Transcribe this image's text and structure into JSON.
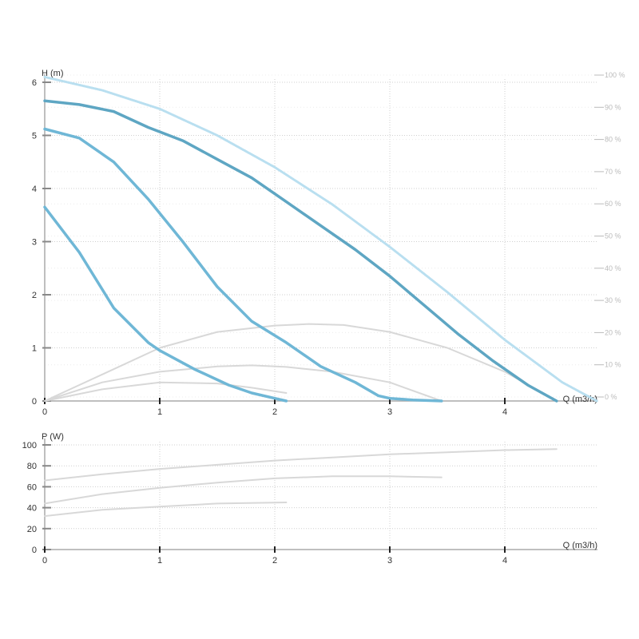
{
  "chart_data": [
    {
      "type": "line",
      "title": "",
      "ylabel": "H (m)",
      "xlabel": "Q (m3/h)",
      "xlim": [
        0,
        4.8
      ],
      "ylim": [
        0,
        6
      ],
      "x_ticks": [
        "0",
        "1",
        "2",
        "3",
        "4"
      ],
      "y_ticks": [
        "0",
        "1",
        "2",
        "3",
        "4",
        "5",
        "6"
      ],
      "right_axis_ticks": [
        "0 %",
        "10 %",
        "20 %",
        "30 %",
        "40 %",
        "50 %",
        "60 %",
        "70 %",
        "80 %",
        "90 %",
        "100 %"
      ],
      "grid": true,
      "colors": {
        "pump_curve": "#6fb7d6",
        "pump_curve_max": "#5ea6c3",
        "max_envelope": "#b9dff0",
        "efficiency_curve": "#d8d8d8"
      },
      "series": [
        {
          "kind": "pump",
          "x": [
            0,
            0.3,
            0.6,
            0.9,
            1.0,
            1.3,
            1.6,
            1.8,
            2.0,
            2.1
          ],
          "y": [
            3.65,
            2.8,
            1.75,
            1.1,
            0.95,
            0.6,
            0.3,
            0.15,
            0.05,
            0.0
          ]
        },
        {
          "kind": "pump",
          "x": [
            0,
            0.3,
            0.6,
            0.9,
            1.2,
            1.5,
            1.8,
            2.1,
            2.4,
            2.7,
            2.9,
            3.0,
            3.2,
            3.45
          ],
          "y": [
            5.12,
            4.95,
            4.5,
            3.8,
            3.0,
            2.15,
            1.5,
            1.1,
            0.65,
            0.35,
            0.1,
            0.05,
            0.02,
            0.0
          ]
        },
        {
          "kind": "pump_max",
          "x": [
            0,
            0.3,
            0.6,
            0.9,
            1.2,
            1.5,
            1.8,
            2.1,
            2.4,
            2.7,
            3.0,
            3.3,
            3.6,
            3.9,
            4.2,
            4.45
          ],
          "y": [
            5.65,
            5.58,
            5.45,
            5.15,
            4.9,
            4.55,
            4.2,
            3.75,
            3.3,
            2.85,
            2.35,
            1.8,
            1.25,
            0.75,
            0.3,
            0.0
          ]
        },
        {
          "kind": "envelope",
          "x": [
            0,
            0.5,
            1.0,
            1.5,
            2.0,
            2.5,
            3.0,
            3.5,
            4.0,
            4.5,
            4.8
          ],
          "y": [
            6.1,
            5.85,
            5.5,
            5.0,
            4.4,
            3.7,
            2.9,
            2.05,
            1.15,
            0.35,
            0.0
          ]
        },
        {
          "kind": "efficiency",
          "x": [
            0,
            0.5,
            1.0,
            1.5,
            1.8,
            2.1
          ],
          "y": [
            0,
            0.22,
            0.35,
            0.33,
            0.25,
            0.15
          ]
        },
        {
          "kind": "efficiency",
          "x": [
            0,
            0.5,
            1.0,
            1.5,
            1.8,
            2.1,
            2.5,
            3.0,
            3.45
          ],
          "y": [
            0,
            0.35,
            0.55,
            0.65,
            0.67,
            0.64,
            0.55,
            0.35,
            0.0
          ]
        },
        {
          "kind": "efficiency",
          "x": [
            0,
            0.5,
            1.0,
            1.5,
            2.0,
            2.3,
            2.6,
            3.0,
            3.5,
            4.0,
            4.45
          ],
          "y": [
            0,
            0.5,
            1.0,
            1.3,
            1.42,
            1.45,
            1.43,
            1.3,
            1.0,
            0.55,
            0.0
          ]
        }
      ]
    },
    {
      "type": "line",
      "title": "",
      "ylabel": "P (W)",
      "xlabel": "Q (m3/h)",
      "xlim": [
        0,
        4.8
      ],
      "ylim": [
        0,
        100
      ],
      "x_ticks": [
        "0",
        "1",
        "2",
        "3",
        "4"
      ],
      "y_ticks": [
        "0",
        "20",
        "40",
        "60",
        "80",
        "100"
      ],
      "grid": true,
      "colors": {
        "power_curve": "#d8d8d8"
      },
      "series": [
        {
          "x": [
            0,
            0.5,
            1.0,
            1.5,
            2.1
          ],
          "y": [
            32,
            38,
            41,
            44,
            45
          ]
        },
        {
          "x": [
            0,
            0.5,
            1.0,
            1.5,
            2.0,
            2.5,
            3.0,
            3.45
          ],
          "y": [
            44,
            53,
            59,
            64,
            68,
            70,
            70,
            69
          ]
        },
        {
          "x": [
            0,
            0.5,
            1.0,
            1.5,
            2.0,
            2.5,
            3.0,
            3.5,
            4.0,
            4.45
          ],
          "y": [
            66,
            72,
            77,
            81,
            85,
            88,
            91,
            93,
            95,
            96
          ]
        }
      ]
    }
  ]
}
